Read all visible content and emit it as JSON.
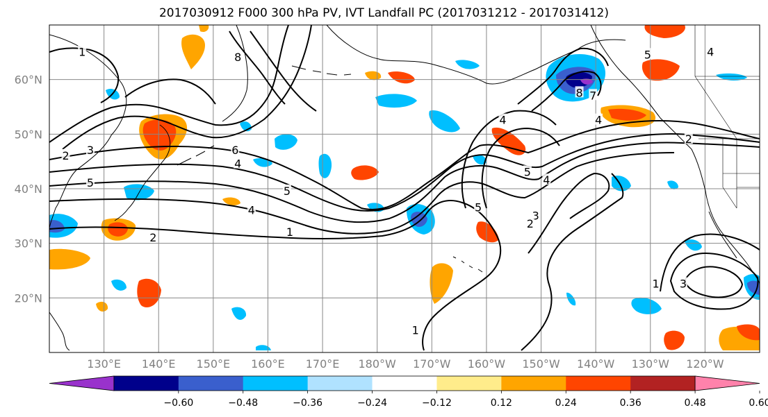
{
  "title": "2017030912 F000 300 hPa PV, IVT Landfall PC (2017031212 - 2017031412)",
  "map": {
    "extent": {
      "lon_min": 120,
      "lon_max": 250,
      "lat_min": 10,
      "lat_max": 70
    },
    "lat_ticks": [
      {
        "value": 60,
        "label": "60°N"
      },
      {
        "value": 50,
        "label": "50°N"
      },
      {
        "value": 40,
        "label": "40°N"
      },
      {
        "value": 30,
        "label": "30°N"
      },
      {
        "value": 20,
        "label": "20°N"
      }
    ],
    "lon_ticks": [
      {
        "value": 130,
        "label": "130°E"
      },
      {
        "value": 140,
        "label": "140°E"
      },
      {
        "value": 150,
        "label": "150°E"
      },
      {
        "value": 160,
        "label": "160°E"
      },
      {
        "value": 170,
        "label": "170°E"
      },
      {
        "value": 180,
        "label": "180°W"
      },
      {
        "value": 190,
        "label": "170°W"
      },
      {
        "value": 200,
        "label": "160°W"
      },
      {
        "value": 210,
        "label": "150°W"
      },
      {
        "value": 220,
        "label": "140°W"
      },
      {
        "value": 230,
        "label": "130°W"
      },
      {
        "value": 240,
        "label": "120°W"
      }
    ],
    "gridlines": true
  },
  "colorbar": {
    "bins": [
      {
        "color": "#9932cc"
      },
      {
        "color": "#00008b"
      },
      {
        "color": "#3a5fcd"
      },
      {
        "color": "#00bfff"
      },
      {
        "color": "#b0e2ff"
      },
      {
        "color": "#ffffff"
      },
      {
        "color": "#ffec8b"
      },
      {
        "color": "#ffa500"
      },
      {
        "color": "#ff4500"
      },
      {
        "color": "#b22222"
      },
      {
        "color": "#ff82ab"
      }
    ],
    "tick_labels": [
      "−0.60",
      "−0.48",
      "−0.36",
      "−0.24",
      "−0.12",
      "0.12",
      "0.24",
      "0.36",
      "0.48",
      "0.60"
    ],
    "extend": "both"
  },
  "contour_labels": [
    {
      "text": "1",
      "lon": 126,
      "lat": 65
    },
    {
      "text": "8",
      "lon": 154.5,
      "lat": 64
    },
    {
      "text": "6",
      "lon": 154,
      "lat": 47
    },
    {
      "text": "4",
      "lon": 154.5,
      "lat": 44.5
    },
    {
      "text": "5",
      "lon": 127.5,
      "lat": 41
    },
    {
      "text": "2",
      "lon": 123,
      "lat": 46
    },
    {
      "text": "3",
      "lon": 127.5,
      "lat": 47
    },
    {
      "text": "5",
      "lon": 163.5,
      "lat": 39.5
    },
    {
      "text": "4",
      "lon": 157,
      "lat": 36
    },
    {
      "text": "1",
      "lon": 164,
      "lat": 32
    },
    {
      "text": "2",
      "lon": 139,
      "lat": 31
    },
    {
      "text": "4",
      "lon": 203,
      "lat": 52.5
    },
    {
      "text": "5",
      "lon": 198.5,
      "lat": 36.5
    },
    {
      "text": "3",
      "lon": 209,
      "lat": 35
    },
    {
      "text": "2",
      "lon": 208,
      "lat": 33.5
    },
    {
      "text": "4",
      "lon": 211,
      "lat": 41.5
    },
    {
      "text": "5",
      "lon": 207.5,
      "lat": 43
    },
    {
      "text": "8",
      "lon": 217,
      "lat": 57.5
    },
    {
      "text": "7",
      "lon": 219.5,
      "lat": 57
    },
    {
      "text": "4",
      "lon": 220.5,
      "lat": 52.5
    },
    {
      "text": "2",
      "lon": 237,
      "lat": 49
    },
    {
      "text": "4",
      "lon": 241,
      "lat": 65
    },
    {
      "text": "5",
      "lon": 229.5,
      "lat": 64.5
    },
    {
      "text": "1",
      "lon": 231,
      "lat": 22.5
    },
    {
      "text": "3",
      "lon": 236,
      "lat": 22.5
    },
    {
      "text": "1",
      "lon": 187,
      "lat": 14
    }
  ]
}
